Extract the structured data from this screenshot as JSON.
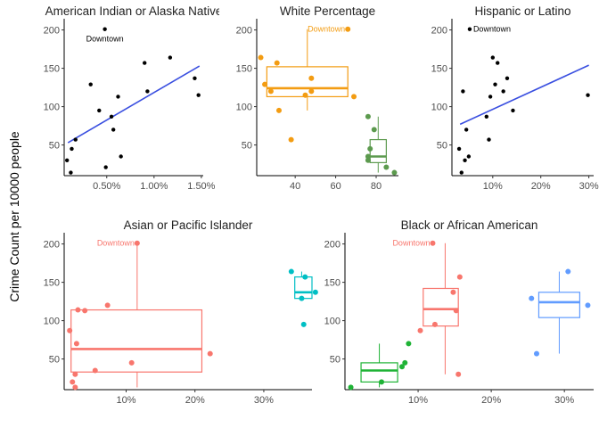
{
  "figure": {
    "ylabel": "Crime Count per 10000 people",
    "annotation_text": "Downtown"
  },
  "colors": {
    "black": "#000000",
    "orange": "#F39C12",
    "green": "#5C9A4E",
    "blue": "#3A4FE0",
    "red": "#F8766D",
    "teal": "#00BFC4",
    "green2": "#1FB336",
    "blue2": "#619CFF"
  },
  "chart_data": [
    {
      "id": "panel-american-indian",
      "type": "scatter",
      "title": "American Indian or Alaska Native",
      "xlim": [
        0.0005,
        0.0152
      ],
      "ylim": [
        10,
        210
      ],
      "xticks": [
        0.005,
        0.01,
        0.015
      ],
      "xtick_labels": [
        "0.50%",
        "1.00%",
        "1.50%"
      ],
      "yticks": [
        50,
        100,
        150,
        200
      ],
      "ytick_labels": [
        "50",
        "100",
        "150",
        "200"
      ],
      "points": [
        {
          "x": 0.0008,
          "y": 30
        },
        {
          "x": 0.0013,
          "y": 45
        },
        {
          "x": 0.0012,
          "y": 14
        },
        {
          "x": 0.0017,
          "y": 57
        },
        {
          "x": 0.0033,
          "y": 129
        },
        {
          "x": 0.0042,
          "y": 95
        },
        {
          "x": 0.0048,
          "y": 201
        },
        {
          "x": 0.0049,
          "y": 21
        },
        {
          "x": 0.0055,
          "y": 87
        },
        {
          "x": 0.0057,
          "y": 70
        },
        {
          "x": 0.0062,
          "y": 113
        },
        {
          "x": 0.0065,
          "y": 35
        },
        {
          "x": 0.009,
          "y": 157
        },
        {
          "x": 0.0093,
          "y": 120
        },
        {
          "x": 0.0117,
          "y": 164
        },
        {
          "x": 0.0143,
          "y": 137
        },
        {
          "x": 0.0147,
          "y": 115
        }
      ],
      "trend": {
        "x": [
          0.0009,
          0.0148
        ],
        "y": [
          53,
          153
        ]
      },
      "label": {
        "x": 0.0048,
        "y": 201,
        "text": "Downtown"
      }
    },
    {
      "id": "panel-white",
      "type": "box",
      "title": "White Percentage",
      "xlim": [
        21,
        91
      ],
      "ylim": [
        10,
        210
      ],
      "xticks": [
        40,
        60,
        80
      ],
      "xtick_labels": [
        "40",
        "60",
        "80"
      ],
      "yticks": [
        50,
        100,
        150,
        200
      ],
      "ytick_labels": [
        "50",
        "100",
        "150",
        "200"
      ],
      "boxes": [
        {
          "name": "",
          "color": "orange",
          "x_center": 46,
          "x_left": 26,
          "x_right": 66,
          "q1": 113,
          "median": 124,
          "q3": 152,
          "whisker_low": 95,
          "whisker_high": 201
        },
        {
          "name": "",
          "color": "green",
          "x_center": 81,
          "x_left": 77,
          "x_right": 85,
          "q1": 27,
          "median": 35,
          "q3": 57,
          "whisker_low": 14,
          "whisker_high": 87
        }
      ],
      "points": [
        {
          "x": 23,
          "y": 164,
          "color": "orange"
        },
        {
          "x": 25,
          "y": 129,
          "color": "orange"
        },
        {
          "x": 28,
          "y": 120,
          "color": "orange"
        },
        {
          "x": 31,
          "y": 157,
          "color": "orange"
        },
        {
          "x": 32,
          "y": 95,
          "color": "orange"
        },
        {
          "x": 38,
          "y": 57,
          "color": "orange"
        },
        {
          "x": 45,
          "y": 115,
          "color": "orange"
        },
        {
          "x": 48,
          "y": 137,
          "color": "orange"
        },
        {
          "x": 48,
          "y": 120,
          "color": "orange"
        },
        {
          "x": 66,
          "y": 201,
          "color": "orange"
        },
        {
          "x": 69,
          "y": 113,
          "color": "orange"
        },
        {
          "x": 76,
          "y": 87,
          "color": "green"
        },
        {
          "x": 77,
          "y": 45,
          "color": "green"
        },
        {
          "x": 76,
          "y": 35,
          "color": "green"
        },
        {
          "x": 76,
          "y": 30,
          "color": "green"
        },
        {
          "x": 79,
          "y": 70,
          "color": "green"
        },
        {
          "x": 85,
          "y": 21,
          "color": "green"
        },
        {
          "x": 89,
          "y": 14,
          "color": "green"
        }
      ],
      "label": {
        "x": 66,
        "y": 201,
        "text": "Downtown",
        "color": "orange",
        "anchor": "end"
      }
    },
    {
      "id": "panel-hispanic",
      "type": "scatter",
      "title": "Hispanic or Latino",
      "xlim": [
        0.015,
        0.31
      ],
      "ylim": [
        10,
        210
      ],
      "xticks": [
        0.1,
        0.2,
        0.3
      ],
      "xtick_labels": [
        "10%",
        "20%",
        "30%"
      ],
      "yticks": [
        50,
        100,
        150,
        200
      ],
      "ytick_labels": [
        "50",
        "100",
        "150",
        "200"
      ],
      "points": [
        {
          "x": 0.03,
          "y": 45
        },
        {
          "x": 0.035,
          "y": 14
        },
        {
          "x": 0.038,
          "y": 120
        },
        {
          "x": 0.042,
          "y": 30
        },
        {
          "x": 0.045,
          "y": 70
        },
        {
          "x": 0.05,
          "y": 35
        },
        {
          "x": 0.052,
          "y": 201
        },
        {
          "x": 0.087,
          "y": 87
        },
        {
          "x": 0.092,
          "y": 57
        },
        {
          "x": 0.095,
          "y": 113
        },
        {
          "x": 0.1,
          "y": 164
        },
        {
          "x": 0.105,
          "y": 129
        },
        {
          "x": 0.11,
          "y": 157
        },
        {
          "x": 0.122,
          "y": 120
        },
        {
          "x": 0.13,
          "y": 137
        },
        {
          "x": 0.142,
          "y": 95
        },
        {
          "x": 0.298,
          "y": 115
        }
      ],
      "trend": {
        "x": [
          0.032,
          0.3
        ],
        "y": [
          77,
          154
        ]
      },
      "label": {
        "x": 0.052,
        "y": 201,
        "text": "Downtown"
      }
    },
    {
      "id": "panel-asian",
      "type": "box",
      "title": "Asian or Pacific Islander",
      "xlim": [
        0.01,
        0.37
      ],
      "ylim": [
        10,
        210
      ],
      "xticks": [
        0.1,
        0.2,
        0.3
      ],
      "xtick_labels": [
        "10%",
        "20%",
        "30%"
      ],
      "yticks": [
        50,
        100,
        150,
        200
      ],
      "ytick_labels": [
        "50",
        "100",
        "150",
        "200"
      ],
      "boxes": [
        {
          "name": "",
          "color": "red",
          "x_center": 0.116,
          "x_left": 0.02,
          "x_right": 0.21,
          "q1": 33,
          "median": 63,
          "q3": 114,
          "whisker_low": 13,
          "whisker_high": 201
        },
        {
          "name": "",
          "color": "teal",
          "x_center": 0.355,
          "x_left": 0.345,
          "x_right": 0.37,
          "q1": 129,
          "median": 137,
          "q3": 157,
          "whisker_low": 129,
          "whisker_high": 164
        }
      ],
      "points": [
        {
          "x": 0.018,
          "y": 87,
          "color": "red"
        },
        {
          "x": 0.022,
          "y": 20,
          "color": "red"
        },
        {
          "x": 0.026,
          "y": 30,
          "color": "red"
        },
        {
          "x": 0.026,
          "y": 13,
          "color": "red"
        },
        {
          "x": 0.028,
          "y": 70,
          "color": "red"
        },
        {
          "x": 0.03,
          "y": 114,
          "color": "red"
        },
        {
          "x": 0.04,
          "y": 113,
          "color": "red"
        },
        {
          "x": 0.055,
          "y": 35,
          "color": "red"
        },
        {
          "x": 0.073,
          "y": 120,
          "color": "red"
        },
        {
          "x": 0.108,
          "y": 45,
          "color": "red"
        },
        {
          "x": 0.116,
          "y": 201,
          "color": "red"
        },
        {
          "x": 0.222,
          "y": 57,
          "color": "red"
        },
        {
          "x": 0.34,
          "y": 164,
          "color": "teal"
        },
        {
          "x": 0.355,
          "y": 129,
          "color": "teal"
        },
        {
          "x": 0.358,
          "y": 95,
          "color": "teal"
        },
        {
          "x": 0.36,
          "y": 157,
          "color": "teal"
        },
        {
          "x": 0.375,
          "y": 137,
          "color": "teal"
        }
      ],
      "label": {
        "x": 0.116,
        "y": 201,
        "text": "Downtown",
        "color": "red",
        "anchor": "end"
      }
    },
    {
      "id": "panel-black",
      "type": "box",
      "title": "Black or African American",
      "xlim": [
        0.0,
        0.34
      ],
      "ylim": [
        10,
        210
      ],
      "xticks": [
        0.1,
        0.2,
        0.3
      ],
      "xtick_labels": [
        "10%",
        "20%",
        "30%"
      ],
      "yticks": [
        50,
        100,
        150,
        200
      ],
      "ytick_labels": [
        "50",
        "100",
        "150",
        "200"
      ],
      "boxes": [
        {
          "name": "",
          "color": "green2",
          "x_center": 0.047,
          "x_left": 0.022,
          "x_right": 0.072,
          "q1": 20,
          "median": 35,
          "q3": 45,
          "whisker_low": 13,
          "whisker_high": 70
        },
        {
          "name": "",
          "color": "red",
          "x_center": 0.137,
          "x_left": 0.107,
          "x_right": 0.155,
          "q1": 93,
          "median": 115,
          "q3": 142,
          "whisker_low": 30,
          "whisker_high": 201
        },
        {
          "name": "",
          "color": "blue2",
          "x_center": 0.293,
          "x_left": 0.265,
          "x_right": 0.321,
          "q1": 104,
          "median": 124,
          "q3": 137,
          "whisker_low": 57,
          "whisker_high": 164
        }
      ],
      "points": [
        {
          "x": 0.008,
          "y": 13,
          "color": "green2"
        },
        {
          "x": 0.05,
          "y": 20,
          "color": "green2"
        },
        {
          "x": 0.078,
          "y": 40,
          "color": "green2"
        },
        {
          "x": 0.082,
          "y": 45,
          "color": "green2"
        },
        {
          "x": 0.087,
          "y": 70,
          "color": "green2"
        },
        {
          "x": 0.103,
          "y": 87,
          "color": "red"
        },
        {
          "x": 0.12,
          "y": 201,
          "color": "red"
        },
        {
          "x": 0.123,
          "y": 95,
          "color": "red"
        },
        {
          "x": 0.148,
          "y": 137,
          "color": "red"
        },
        {
          "x": 0.152,
          "y": 113,
          "color": "red"
        },
        {
          "x": 0.155,
          "y": 30,
          "color": "red"
        },
        {
          "x": 0.157,
          "y": 157,
          "color": "red"
        },
        {
          "x": 0.255,
          "y": 129,
          "color": "blue2"
        },
        {
          "x": 0.262,
          "y": 57,
          "color": "blue2"
        },
        {
          "x": 0.305,
          "y": 164,
          "color": "blue2"
        },
        {
          "x": 0.332,
          "y": 120,
          "color": "blue2"
        }
      ],
      "label": {
        "x": 0.12,
        "y": 201,
        "text": "Downtown",
        "color": "red",
        "anchor": "end"
      }
    }
  ]
}
